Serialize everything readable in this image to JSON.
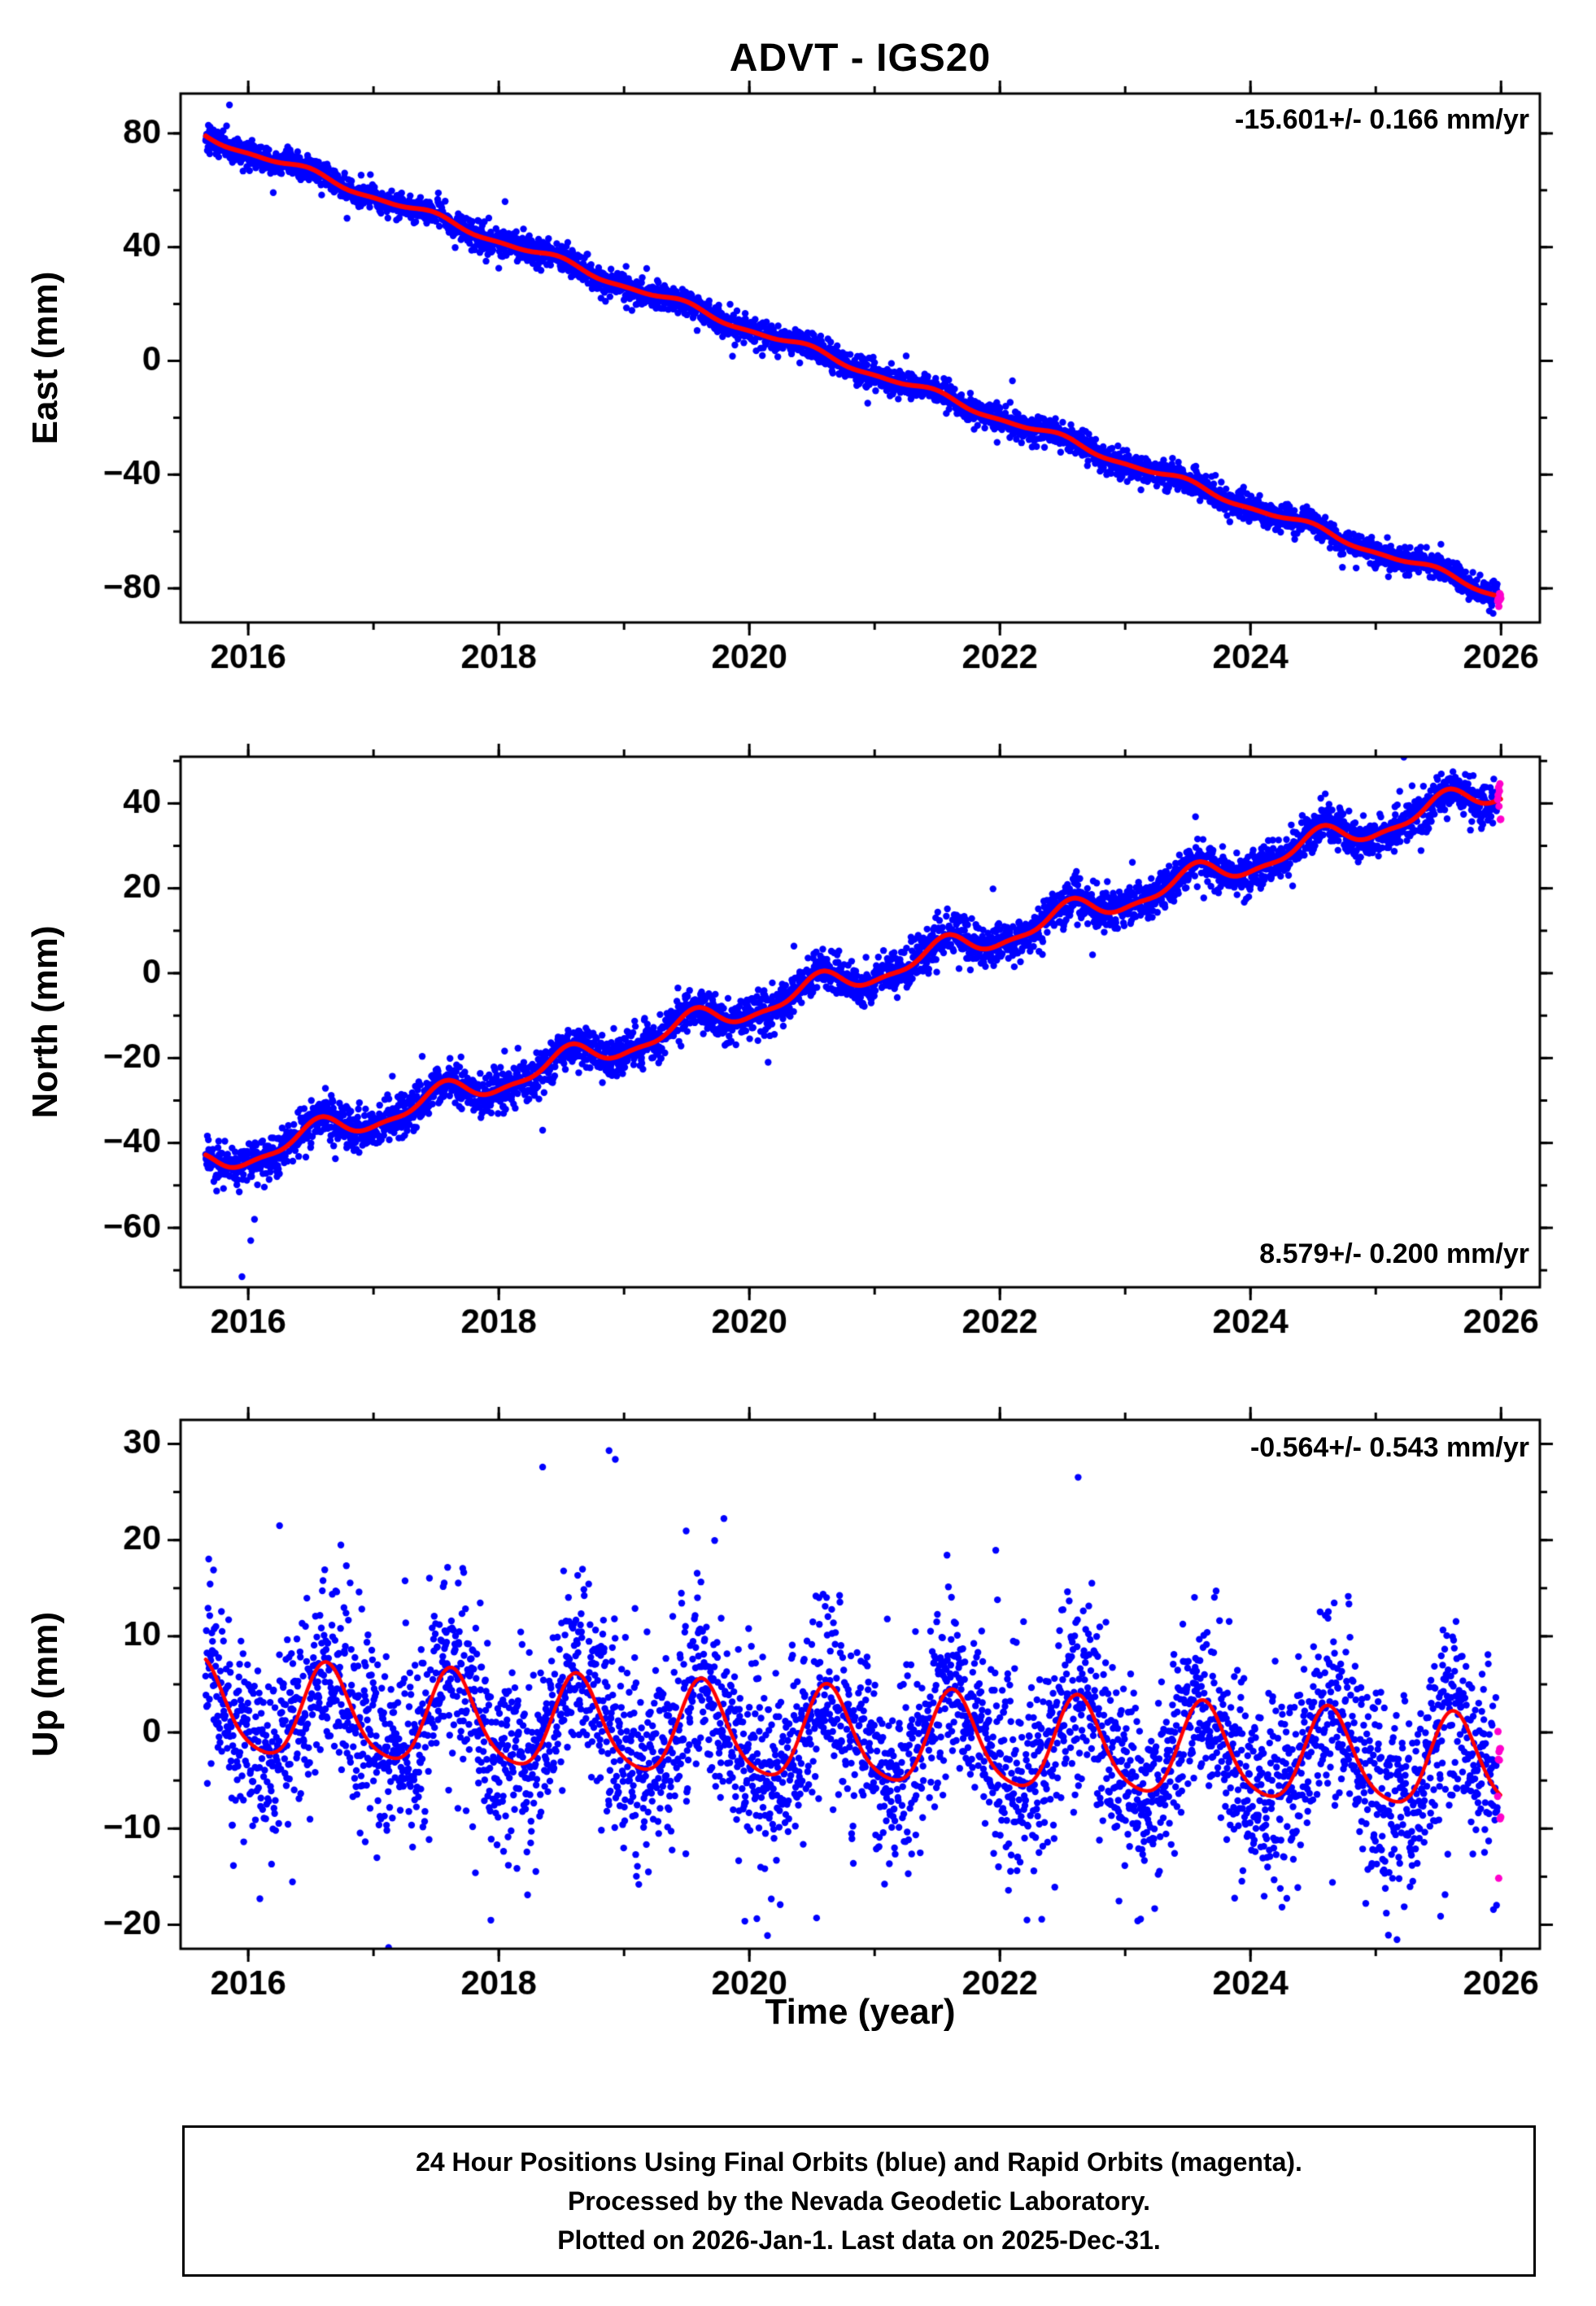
{
  "title": "ADVT - IGS20",
  "xlabel": "Time (year)",
  "footer": {
    "line1": "24 Hour Positions Using Final Orbits (blue) and Rapid Orbits (magenta).",
    "line2": "Processed by the Nevada Geodetic Laboratory.",
    "line3": "Plotted on 2026-Jan-1. Last data on 2025-Dec-31."
  },
  "colors": {
    "final_orbit_points": "#0000ff",
    "rapid_orbit_points": "#ff00cc",
    "model_line": "#ff0000",
    "frame": "#000000"
  },
  "chart_data": [
    {
      "type": "scatter",
      "name": "east",
      "ylabel": "East (mm)",
      "rate_label": "-15.601+/- 0.166 mm/yr",
      "rate_mm_per_yr": -15.601,
      "rate_sigma": 0.166,
      "rate_label_position": "top-right",
      "xlim": [
        2015.46,
        2026.31
      ],
      "ylim": [
        -92,
        94
      ],
      "xticks": [
        2016,
        2018,
        2020,
        2022,
        2024,
        2026
      ],
      "xtick_minor_step": 1,
      "yticks": [
        -80,
        -40,
        0,
        40,
        80
      ],
      "ytick_minor_step": 20,
      "model": {
        "t0": 2015.66,
        "intercept": 79.0,
        "slope": -15.601,
        "annual_amp": 1.3,
        "annual_phase": 0.45,
        "semiannual_amp": 0.5,
        "semiannual_phase": 0.0
      },
      "series_final": {
        "t_start": 2015.66,
        "t_end": 2025.97,
        "per_year": 365,
        "noise_sd": 2.3,
        "outlier_frac": 0.05,
        "outlier_sd": 4.5,
        "seed": 101
      },
      "series_rapid": {
        "t_start": 2025.973,
        "t_end": 2025.998,
        "n": 9,
        "noise_sd": 1.6,
        "seed": 11
      },
      "outliers": [
        [
          2015.85,
          90.0
        ],
        [
          2018.05,
          56.0
        ],
        [
          2022.1,
          -7.0
        ]
      ],
      "line_width": 6
    },
    {
      "type": "scatter",
      "name": "north",
      "ylabel": "North (mm)",
      "rate_label": "8.579+/- 0.200 mm/yr",
      "rate_mm_per_yr": 8.579,
      "rate_sigma": 0.2,
      "rate_label_position": "bottom-right",
      "xlim": [
        2015.46,
        2026.31
      ],
      "ylim": [
        -74,
        51
      ],
      "xticks": [
        2016,
        2018,
        2020,
        2022,
        2024,
        2026
      ],
      "xtick_minor_step": 1,
      "yticks": [
        -60,
        -40,
        -20,
        0,
        20,
        40
      ],
      "ytick_minor_step": 10,
      "model": {
        "t0": 2015.66,
        "intercept": -45.5,
        "slope": 8.579,
        "annual_amp": 2.8,
        "annual_phase": 0.55,
        "semiannual_amp": 1.0,
        "semiannual_phase": 0.08
      },
      "series_final": {
        "t_start": 2015.66,
        "t_end": 2025.97,
        "per_year": 365,
        "noise_sd": 2.4,
        "outlier_frac": 0.05,
        "outlier_sd": 4.5,
        "seed": 202
      },
      "series_rapid": {
        "t_start": 2025.973,
        "t_end": 2025.998,
        "n": 8,
        "noise_sd": 2.6,
        "seed": 22
      },
      "outliers": [
        [
          2015.95,
          -71.5
        ],
        [
          2016.02,
          -63.0
        ],
        [
          2016.05,
          -58.0
        ],
        [
          2018.35,
          -37.0
        ],
        [
          2020.15,
          -21.0
        ]
      ],
      "line_width": 6
    },
    {
      "type": "scatter",
      "name": "up",
      "ylabel": "Up (mm)",
      "rate_label": "-0.564+/- 0.543 mm/yr",
      "rate_mm_per_yr": -0.564,
      "rate_sigma": 0.543,
      "rate_label_position": "top-right",
      "xlim": [
        2015.46,
        2026.31
      ],
      "ylim": [
        -22.5,
        32.5
      ],
      "xticks": [
        2016,
        2018,
        2020,
        2022,
        2024,
        2026
      ],
      "xtick_minor_step": 1,
      "yticks": [
        -20,
        -10,
        0,
        10,
        20,
        30
      ],
      "ytick_minor_step": 5,
      "model": {
        "t0": 2015.66,
        "intercept": 2.3,
        "slope": -0.564,
        "annual_amp": 4.8,
        "annual_phase": 0.63,
        "semiannual_amp": 0.8,
        "semiannual_phase": 0.1
      },
      "series_final": {
        "t_start": 2015.66,
        "t_end": 2025.97,
        "per_year": 365,
        "noise_sd": 4.6,
        "outlier_frac": 0.13,
        "outlier_sd": 8.0,
        "seed": 303
      },
      "series_rapid": {
        "t_start": 2025.973,
        "t_end": 2025.998,
        "n": 10,
        "noise_sd": 6.5,
        "seed": 33
      },
      "outliers": [
        [
          2018.35,
          27.6
        ],
        [
          2018.88,
          29.3
        ],
        [
          2018.93,
          28.4
        ],
        [
          2016.25,
          21.5
        ],
        [
          2023.1,
          -19.6
        ]
      ],
      "line_width": 4.5
    }
  ]
}
